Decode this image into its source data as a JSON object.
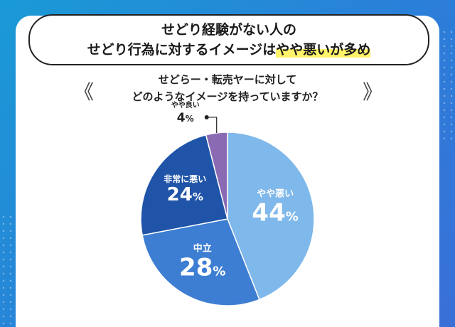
{
  "title": {
    "line1": "せどり経験がない人の",
    "line2_pre": "せどり行為に対するイメージは",
    "line2_highlight": "やや悪いが多め"
  },
  "question": {
    "line1": "せどらー・転売ヤーに対して",
    "line2": "どのようなイメージを持っていますか？"
  },
  "brackets": {
    "left": "《",
    "right": "》"
  },
  "chart_data": {
    "type": "pie",
    "slices": [
      {
        "label": "やや悪い",
        "value": 44,
        "color": "#7fb8ea"
      },
      {
        "label": "中立",
        "value": 28,
        "color": "#3d7ed2"
      },
      {
        "label": "非常に悪い",
        "value": 24,
        "color": "#1f54a8"
      },
      {
        "label": "やや良い",
        "value": 4,
        "color": "#8a6bb3"
      }
    ],
    "unit": "%",
    "start_angle_deg": 0,
    "direction": "clockwise"
  }
}
